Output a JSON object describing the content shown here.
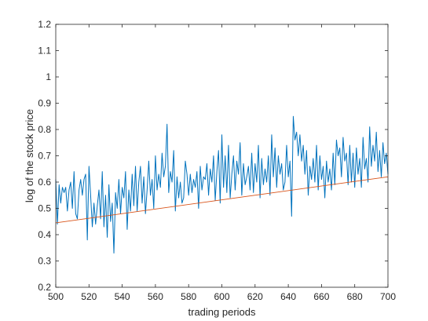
{
  "chart_data": {
    "type": "line",
    "xlabel": "trading periods",
    "ylabel": "log of the stock price",
    "xlim": [
      500,
      700
    ],
    "ylim": [
      0.2,
      1.2
    ],
    "xticks": [
      500,
      520,
      540,
      560,
      580,
      600,
      620,
      640,
      660,
      680,
      700
    ],
    "yticks": [
      0.2,
      0.3,
      0.4,
      0.5,
      0.6,
      0.7,
      0.8,
      0.9,
      1,
      1.1,
      1.2
    ],
    "grid": false,
    "colors": {
      "series": "#0072BD",
      "trend": "#D95319",
      "axes": "#262626"
    },
    "series": [
      {
        "style": "line",
        "x": [
          500,
          501,
          502,
          503,
          504,
          505,
          506,
          507,
          508,
          509,
          510,
          511,
          512,
          513,
          514,
          515,
          516,
          517,
          518,
          519,
          520,
          521,
          522,
          523,
          524,
          525,
          526,
          527,
          528,
          529,
          530,
          531,
          532,
          533,
          534,
          535,
          536,
          537,
          538,
          539,
          540,
          541,
          542,
          543,
          544,
          545,
          546,
          547,
          548,
          549,
          550,
          551,
          552,
          553,
          554,
          555,
          556,
          557,
          558,
          559,
          560,
          561,
          562,
          563,
          564,
          565,
          566,
          567,
          568,
          569,
          570,
          571,
          572,
          573,
          574,
          575,
          576,
          577,
          578,
          579,
          580,
          581,
          582,
          583,
          584,
          585,
          586,
          587,
          588,
          589,
          590,
          591,
          592,
          593,
          594,
          595,
          596,
          597,
          598,
          599,
          600,
          601,
          602,
          603,
          604,
          605,
          606,
          607,
          608,
          609,
          610,
          611,
          612,
          613,
          614,
          615,
          616,
          617,
          618,
          619,
          620,
          621,
          622,
          623,
          624,
          625,
          626,
          627,
          628,
          629,
          630,
          631,
          632,
          633,
          634,
          635,
          636,
          637,
          638,
          639,
          640,
          641,
          642,
          643,
          644,
          645,
          646,
          647,
          648,
          649,
          650,
          651,
          652,
          653,
          654,
          655,
          656,
          657,
          658,
          659,
          660,
          661,
          662,
          663,
          664,
          665,
          666,
          667,
          668,
          669,
          670,
          671,
          672,
          673,
          674,
          675,
          676,
          677,
          678,
          679,
          680,
          681,
          682,
          683,
          684,
          685,
          686,
          687,
          688,
          689,
          690,
          691,
          692,
          693,
          694,
          695,
          696,
          697,
          698,
          699,
          700
        ],
        "y": [
          0.61,
          0.44,
          0.59,
          0.52,
          0.58,
          0.56,
          0.58,
          0.49,
          0.57,
          0.6,
          0.5,
          0.64,
          0.48,
          0.46,
          0.57,
          0.61,
          0.55,
          0.61,
          0.63,
          0.38,
          0.66,
          0.55,
          0.43,
          0.52,
          0.44,
          0.51,
          0.57,
          0.46,
          0.64,
          0.43,
          0.55,
          0.39,
          0.59,
          0.45,
          0.52,
          0.33,
          0.56,
          0.5,
          0.61,
          0.48,
          0.58,
          0.54,
          0.64,
          0.42,
          0.57,
          0.49,
          0.63,
          0.51,
          0.66,
          0.49,
          0.6,
          0.66,
          0.52,
          0.62,
          0.48,
          0.57,
          0.68,
          0.55,
          0.61,
          0.5,
          0.7,
          0.57,
          0.63,
          0.58,
          0.71,
          0.62,
          0.66,
          0.82,
          0.56,
          0.64,
          0.6,
          0.72,
          0.49,
          0.62,
          0.54,
          0.6,
          0.52,
          0.54,
          0.68,
          0.63,
          0.55,
          0.63,
          0.56,
          0.61,
          0.58,
          0.64,
          0.5,
          0.66,
          0.57,
          0.62,
          0.61,
          0.67,
          0.55,
          0.65,
          0.6,
          0.7,
          0.53,
          0.64,
          0.72,
          0.52,
          0.78,
          0.58,
          0.7,
          0.56,
          0.74,
          0.54,
          0.63,
          0.7,
          0.57,
          0.68,
          0.63,
          0.75,
          0.55,
          0.67,
          0.59,
          0.62,
          0.66,
          0.57,
          0.71,
          0.56,
          0.67,
          0.6,
          0.74,
          0.54,
          0.69,
          0.59,
          0.65,
          0.6,
          0.7,
          0.55,
          0.78,
          0.62,
          0.73,
          0.58,
          0.7,
          0.63,
          0.67,
          0.57,
          0.6,
          0.74,
          0.62,
          0.68,
          0.47,
          0.85,
          0.76,
          0.79,
          0.7,
          0.78,
          0.68,
          0.74,
          0.63,
          0.72,
          0.55,
          0.66,
          0.61,
          0.69,
          0.6,
          0.74,
          0.57,
          0.7,
          0.61,
          0.66,
          0.54,
          0.68,
          0.6,
          0.65,
          0.57,
          0.71,
          0.59,
          0.76,
          0.7,
          0.73,
          0.62,
          0.77,
          0.68,
          0.71,
          0.59,
          0.74,
          0.6,
          0.71,
          0.58,
          0.73,
          0.63,
          0.69,
          0.58,
          0.77,
          0.65,
          0.69,
          0.6,
          0.81,
          0.66,
          0.74,
          0.68,
          0.79,
          0.64,
          0.72,
          0.62,
          0.75,
          0.67,
          0.71,
          0.63
        ]
      },
      {
        "style": "line",
        "x": [
          500,
          700
        ],
        "y": [
          0.445,
          0.62
        ]
      }
    ]
  }
}
